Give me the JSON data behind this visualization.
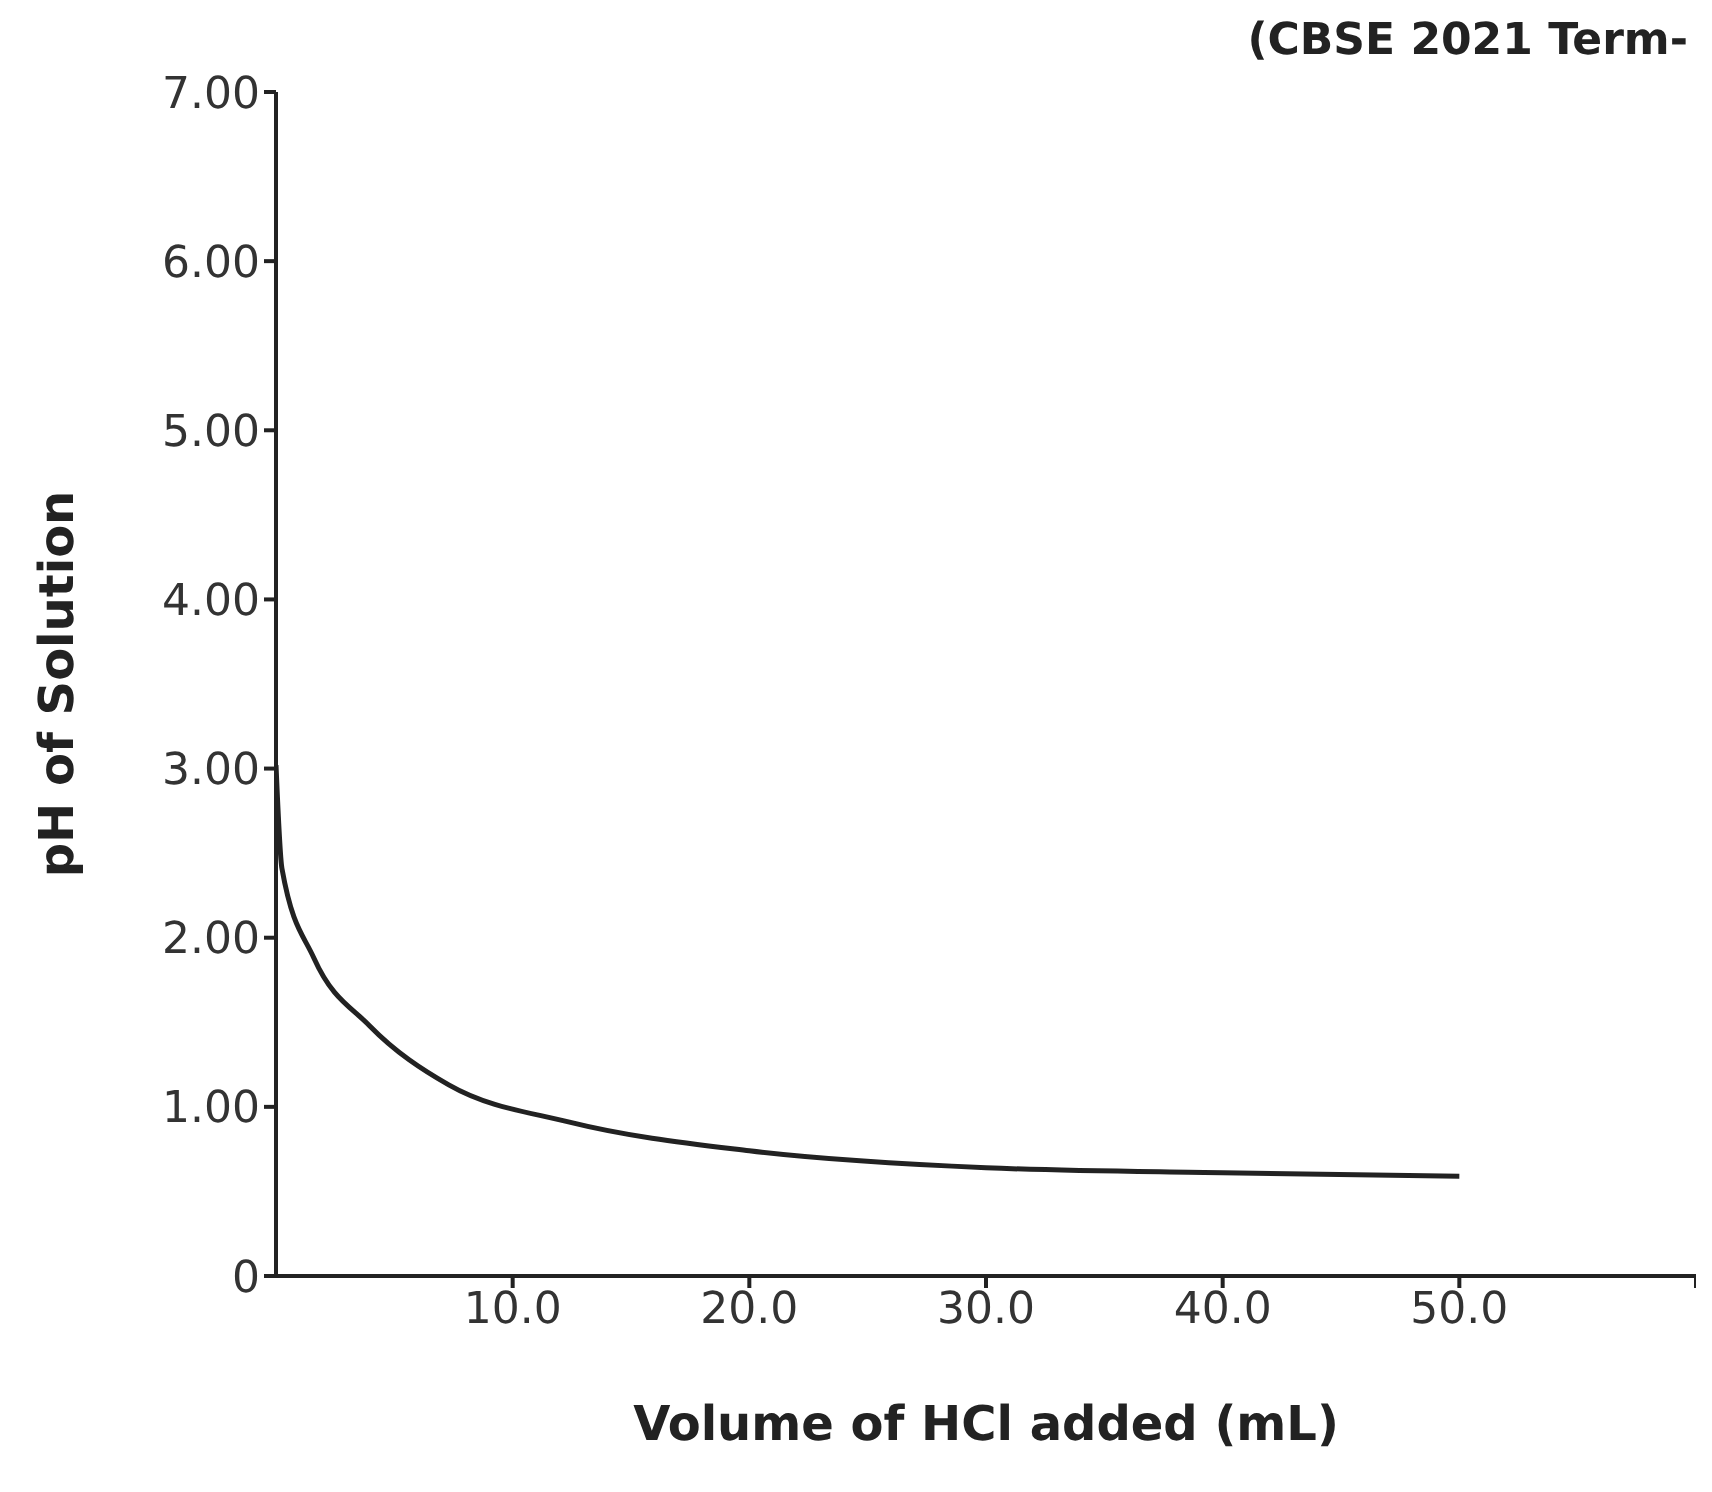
{
  "chart_data": {
    "type": "line",
    "xlabel": "Volume of HCl added (mL)",
    "ylabel": "pH of Solution",
    "annotations": [
      "(CBSE 2021 Term-"
    ],
    "x": [
      0,
      0.25,
      1.6,
      3.95,
      7.3,
      12.4,
      20,
      30,
      40,
      50
    ],
    "series": [
      {
        "color": "#222222",
        "values": [
          3.02,
          2.41,
          1.88,
          1.48,
          1.13,
          0.91,
          0.74,
          0.64,
          0.61,
          0.59
        ]
      }
    ],
    "xlim": [
      0,
      60
    ],
    "xticks": [
      {
        "value": 10,
        "label": "10.0"
      },
      {
        "value": 20,
        "label": "20.0"
      },
      {
        "value": 30,
        "label": "30.0"
      },
      {
        "value": 40,
        "label": "40.0"
      },
      {
        "value": 50,
        "label": "50.0"
      },
      {
        "value": 60,
        "label": null
      }
    ],
    "ylim": [
      0,
      7
    ],
    "yticks": [
      0,
      {
        "value": 1,
        "label": "1.00"
      },
      {
        "value": 2,
        "label": "2.00"
      },
      {
        "value": 3,
        "label": "3.00"
      },
      {
        "value": 4,
        "label": "4.00"
      },
      {
        "value": 5,
        "label": "5.00"
      },
      {
        "value": 6,
        "label": "6.00"
      },
      {
        "value": 7,
        "label": "7.00"
      }
    ],
    "grid": false,
    "legend": false,
    "marker": "none",
    "line_style": "solid"
  }
}
